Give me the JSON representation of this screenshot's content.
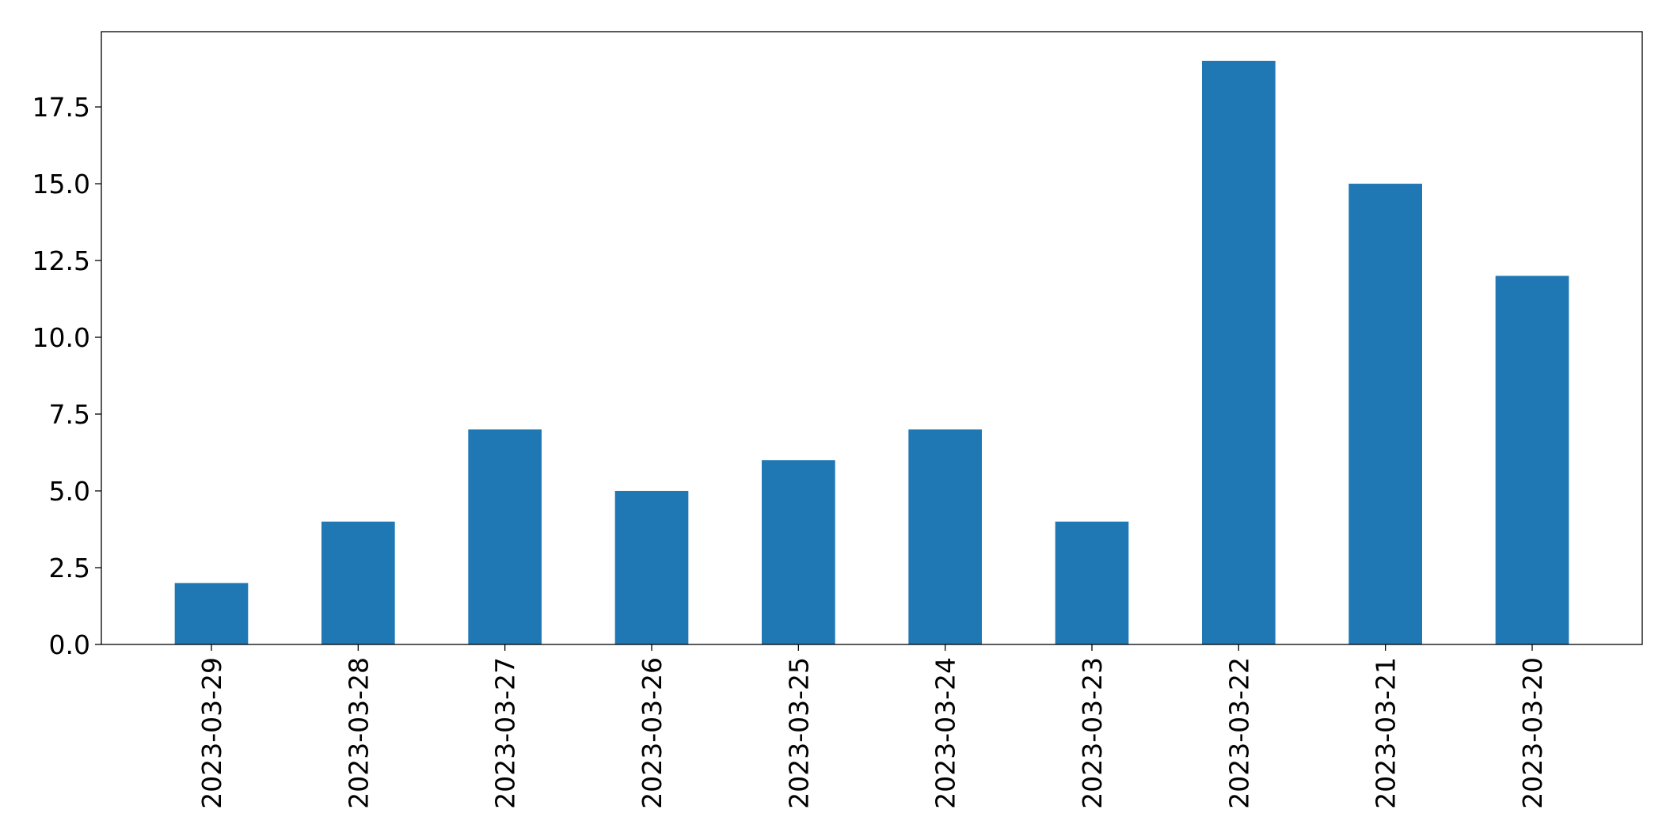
{
  "chart_data": {
    "type": "bar",
    "categories": [
      "2023-03-29",
      "2023-03-28",
      "2023-03-27",
      "2023-03-26",
      "2023-03-25",
      "2023-03-24",
      "2023-03-23",
      "2023-03-22",
      "2023-03-21",
      "2023-03-20"
    ],
    "values": [
      2,
      4,
      7,
      5,
      6,
      7,
      4,
      19,
      15,
      12
    ],
    "title": "",
    "xlabel": "",
    "ylabel": "",
    "ylim": [
      0,
      19.95
    ],
    "yticks": [
      "0.0",
      "2.5",
      "5.0",
      "7.5",
      "10.0",
      "12.5",
      "15.0",
      "17.5"
    ],
    "grid": false,
    "legend": "none",
    "bar_color": "#1f77b4"
  }
}
